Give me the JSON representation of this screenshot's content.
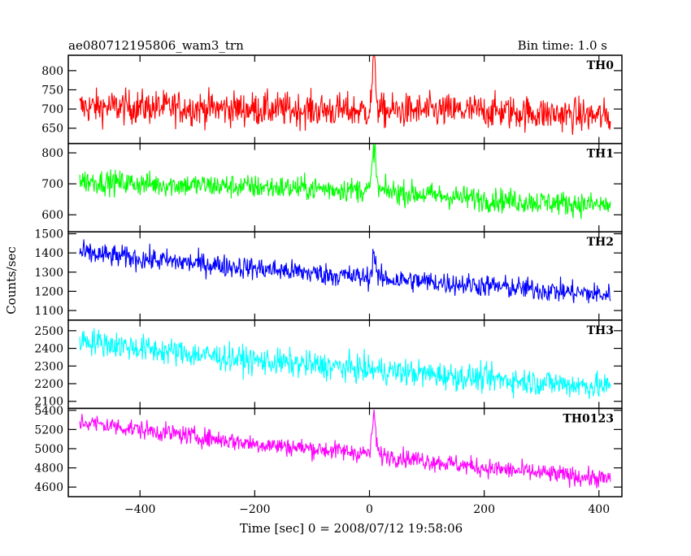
{
  "header": {
    "left_title": "ae080712195806_wam3_trn",
    "right_title": "Bin time: 1.0 s"
  },
  "chart_data": {
    "type": "line",
    "title": "ae080712195806_wam3_trn",
    "subtitle": "Bin time: 1.0 s",
    "xlabel": "Time [sec] 0 = 2008/07/12 19:58:06",
    "ylabel": "Counts/sec",
    "xlim": [
      -525,
      440
    ],
    "x_ticks": [
      -400,
      -200,
      0,
      200,
      400
    ],
    "x_tick_labels": [
      "−400",
      "−200",
      "0",
      "200",
      "400"
    ],
    "x_range_data": [
      -505,
      420
    ],
    "bin_time_s": 1.0,
    "grid": false,
    "legend": "panel labels at top-right of each panel",
    "panels": [
      {
        "name": "TH0",
        "color": "#ff0000",
        "ylim": [
          610,
          840
        ],
        "y_ticks": [
          650,
          700,
          750,
          800
        ],
        "y_tick_labels": [
          "650",
          "700",
          "750",
          "800"
        ],
        "trend": [
          [
            -505,
            705
          ],
          [
            -400,
            705
          ],
          [
            -200,
            700
          ],
          [
            0,
            695
          ],
          [
            200,
            695
          ],
          [
            420,
            680
          ]
        ],
        "noise": 32,
        "peak": {
          "x": 8,
          "y": 835
        }
      },
      {
        "name": "TH1",
        "color": "#00ff00",
        "ylim": [
          545,
          830
        ],
        "y_ticks": [
          600,
          700,
          800
        ],
        "y_tick_labels": [
          "600",
          "700",
          "800"
        ],
        "trend": [
          [
            -505,
            710
          ],
          [
            -400,
            700
          ],
          [
            -200,
            690
          ],
          [
            0,
            680
          ],
          [
            200,
            650
          ],
          [
            420,
            630
          ]
        ],
        "noise": 28,
        "peak": {
          "x": 8,
          "y": 820
        }
      },
      {
        "name": "TH2",
        "color": "#0000ff",
        "ylim": [
          1050,
          1510
        ],
        "y_ticks": [
          1100,
          1200,
          1300,
          1400,
          1500
        ],
        "y_tick_labels": [
          "1100",
          "1200",
          "1300",
          "1400",
          "1500"
        ],
        "trend": [
          [
            -505,
            1400
          ],
          [
            -400,
            1370
          ],
          [
            -200,
            1320
          ],
          [
            0,
            1270
          ],
          [
            200,
            1230
          ],
          [
            420,
            1180
          ]
        ],
        "noise": 42,
        "peak": {
          "x": 8,
          "y": 1400
        }
      },
      {
        "name": "TH3",
        "color": "#00ffff",
        "ylim": [
          2060,
          2560
        ],
        "y_ticks": [
          2100,
          2200,
          2300,
          2400,
          2500
        ],
        "y_tick_labels": [
          "2100",
          "2200",
          "2300",
          "2400",
          "2500"
        ],
        "trend": [
          [
            -505,
            2450
          ],
          [
            -400,
            2400
          ],
          [
            -200,
            2330
          ],
          [
            0,
            2280
          ],
          [
            200,
            2230
          ],
          [
            420,
            2180
          ]
        ],
        "noise": 55,
        "peak": null
      },
      {
        "name": "TH0123",
        "color": "#ff00ff",
        "ylim": [
          4500,
          5420
        ],
        "y_ticks": [
          4600,
          4800,
          5000,
          5200,
          5400
        ],
        "y_tick_labels": [
          "4600",
          "4800",
          "5000",
          "5200",
          "5400"
        ],
        "trend": [
          [
            -505,
            5280
          ],
          [
            -400,
            5200
          ],
          [
            -200,
            5050
          ],
          [
            0,
            4950
          ],
          [
            200,
            4800
          ],
          [
            420,
            4680
          ]
        ],
        "noise": 70,
        "peak": {
          "x": 8,
          "y": 5350
        }
      }
    ]
  }
}
